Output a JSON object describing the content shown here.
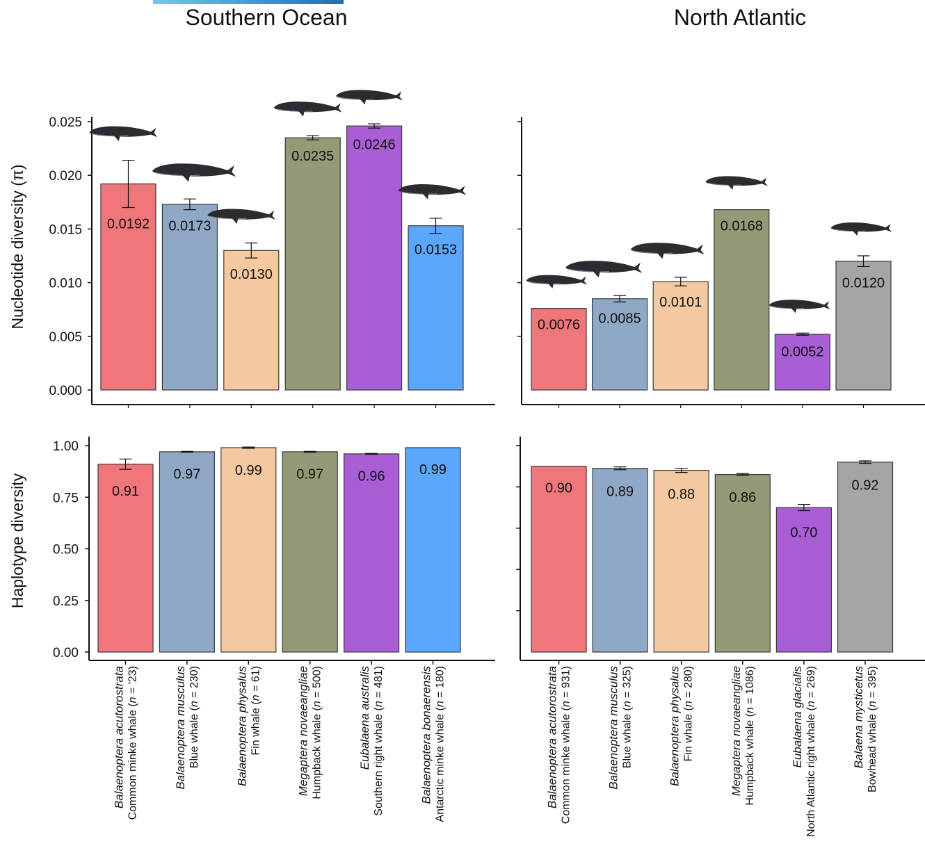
{
  "colors": {
    "common_minke": "#ef767a",
    "blue": "#8ea8c6",
    "fin": "#f4c9a0",
    "humpback": "#939b76",
    "right": "#a95ed6",
    "antarctic_minke": "#5aa7fd",
    "bowhead": "#a5a5a5",
    "whale": "#2a2c30"
  },
  "chart_data": [
    {
      "type": "bar",
      "panel": "Southern Ocean",
      "title": "Southern Ocean",
      "metric": "Nucleotide diversity",
      "ylabel": "Nucleotide diversity (π)",
      "ylim": [
        0,
        0.025
      ],
      "yticks": [
        "0.025",
        "0.020",
        "0.015",
        "0.010",
        "0.005",
        "0.000"
      ],
      "categories": [
        "Balaenoptera acutorostrata",
        "Balaenoptera musculus",
        "Balaenoptera physalus",
        "Megaptera novaeangliae",
        "Eubalaena australis",
        "Balaenoptera bonaerensis"
      ],
      "values": [
        0.0192,
        0.0173,
        0.013,
        0.0235,
        0.0246,
        0.0153
      ],
      "labels": [
        "0.0192",
        "0.0173",
        "0.0130",
        "0.0235",
        "0.0246",
        "0.0153"
      ],
      "error": [
        0.0022,
        0.0005,
        0.0007,
        0.0002,
        0.0002,
        0.0007
      ],
      "colors": [
        "common_minke",
        "blue",
        "fin",
        "humpback",
        "right",
        "antarctic_minke"
      ]
    },
    {
      "type": "bar",
      "panel": "North Atlantic",
      "title": "North Atlantic",
      "metric": "Nucleotide diversity",
      "ylabel": "",
      "ylim": [
        0,
        0.025
      ],
      "categories": [
        "Balaenoptera acutorostrata",
        "Balaenoptera musculus",
        "Balaenoptera physalus",
        "Megaptera novaeangliae",
        "Eubalaena glacialis",
        "Balaena mysticetus"
      ],
      "values": [
        0.0076,
        0.0085,
        0.0101,
        0.0168,
        0.0052,
        0.012
      ],
      "labels": [
        "0.0076",
        "0.0085",
        "0.0101",
        "0.0168",
        "0.0052",
        "0.0120"
      ],
      "error": [
        0,
        0.0003,
        0.0004,
        0,
        0.0001,
        0.0005
      ],
      "colors": [
        "common_minke",
        "blue",
        "fin",
        "humpback",
        "right",
        "bowhead"
      ]
    },
    {
      "type": "bar",
      "panel": "Southern Ocean",
      "metric": "Haplotype diversity",
      "ylabel": "Haplotype diversity",
      "ylim": [
        0,
        1.0
      ],
      "yticks": [
        "1.00",
        "0.75",
        "0.50",
        "0.25",
        "0.00"
      ],
      "categories": [
        "Balaenoptera acutorostrata",
        "Balaenoptera musculus",
        "Balaenoptera physalus",
        "Megaptera novaeangliae",
        "Eubalaena australis",
        "Balaenoptera bonaerensis"
      ],
      "values": [
        0.91,
        0.97,
        0.99,
        0.97,
        0.96,
        0.99
      ],
      "labels": [
        "0.91",
        "0.97",
        "0.99",
        "0.97",
        "0.96",
        "0.99"
      ],
      "error": [
        0.025,
        0.002,
        0.003,
        0.002,
        0.002,
        0
      ],
      "colors": [
        "common_minke",
        "blue",
        "fin",
        "humpback",
        "right",
        "antarctic_minke"
      ],
      "species": [
        {
          "scientific": "Balaenoptera acutorostrata",
          "common": "Common minke whale (",
          "n": " = '23)"
        },
        {
          "scientific": "Balaenoptera musculus",
          "common": "Blue whale (",
          "n": " = 230)"
        },
        {
          "scientific": "Balaenoptera physalus",
          "common": "Fin whale (",
          "n": " = 61)"
        },
        {
          "scientific": "Megaptera novaeangliae",
          "common": "Humpback whale (",
          "n": " = 500)"
        },
        {
          "scientific": "Eubalaena australis",
          "common": "Southern right whale (",
          "n": " = 481)"
        },
        {
          "scientific": "Balaenoptera bonaerensis",
          "common": "Antarctic minke whale (",
          "n": " = 180)"
        }
      ]
    },
    {
      "type": "bar",
      "panel": "North Atlantic",
      "metric": "Haplotype diversity",
      "ylabel": "",
      "ylim": [
        0,
        1.0
      ],
      "categories": [
        "Balaenoptera acutorostrata",
        "Balaenoptera musculus",
        "Balaenoptera physalus",
        "Megaptera novaeangliae",
        "Eubalaena glacialis",
        "Balaena mysticetus"
      ],
      "values": [
        0.9,
        0.89,
        0.88,
        0.86,
        0.7,
        0.92
      ],
      "labels": [
        "0.90",
        "0.89",
        "0.88",
        "0.86",
        "0.70",
        "0.92"
      ],
      "error": [
        0,
        0.007,
        0.01,
        0.005,
        0.015,
        0.006
      ],
      "colors": [
        "common_minke",
        "blue",
        "fin",
        "humpback",
        "right",
        "bowhead"
      ],
      "species": [
        {
          "scientific": "Balaenoptera acutorostrata",
          "common": "Common minke whale (",
          "n": " = 931)"
        },
        {
          "scientific": "Balaenoptera musculus",
          "common": "Blue whale (",
          "n": " = 325)"
        },
        {
          "scientific": "Balaenoptera physalus",
          "common": "Fin whale (",
          "n": " = 280)"
        },
        {
          "scientific": "Megaptera novaeangliae",
          "common": "Humpback whale (",
          "n": " = 1086)"
        },
        {
          "scientific": "Eubalaena glacialis",
          "common": "North Atlantic right whale (",
          "n": " = 269)"
        },
        {
          "scientific": "Balaena mysticetus",
          "common": "Bowhead whale (",
          "n": " = 395)"
        }
      ]
    }
  ]
}
